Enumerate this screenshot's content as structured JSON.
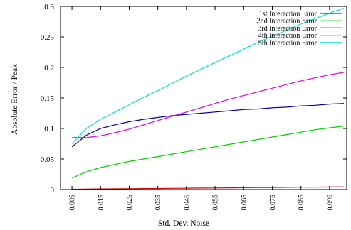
{
  "chart_data": {
    "type": "line",
    "xlabel": "Std. Dev. Noise",
    "ylabel": "Absolute Error / Peak",
    "xlim": [
      0.001,
      0.101
    ],
    "ylim": [
      0,
      0.3
    ],
    "x_ticks": [
      0.005,
      0.015,
      0.025,
      0.035,
      0.045,
      0.055,
      0.065,
      0.075,
      0.085,
      0.095
    ],
    "x_tick_labels": [
      "0.005",
      "0.015",
      "0.025",
      "0.035",
      "0.045",
      "0.055",
      "0.065",
      "0.075",
      "0.085",
      "0.095"
    ],
    "y_ticks": [
      0,
      0.05,
      0.1,
      0.15,
      0.2,
      0.25,
      0.3
    ],
    "y_tick_labels": [
      "0",
      "0.05",
      "0.1",
      "0.15",
      "0.2",
      "0.25",
      "0.3"
    ],
    "grid": false,
    "legend_position": "top-right",
    "x": [
      0.005,
      0.01,
      0.015,
      0.02,
      0.025,
      0.03,
      0.035,
      0.04,
      0.045,
      0.05,
      0.055,
      0.06,
      0.065,
      0.07,
      0.075,
      0.08,
      0.085,
      0.09,
      0.095,
      0.1
    ],
    "series": [
      {
        "name": "1st Interaction Error",
        "color": "#e00000",
        "values": [
          0.0005,
          0.0008,
          0.001,
          0.0012,
          0.0014,
          0.0016,
          0.0018,
          0.002,
          0.0022,
          0.0024,
          0.0026,
          0.0028,
          0.003,
          0.0032,
          0.0034,
          0.0036,
          0.0038,
          0.004,
          0.0042,
          0.0044
        ]
      },
      {
        "name": "2nd Interaction Error",
        "color": "#00d000",
        "values": [
          0.019,
          0.029,
          0.036,
          0.041,
          0.046,
          0.05,
          0.054,
          0.058,
          0.062,
          0.066,
          0.07,
          0.074,
          0.078,
          0.082,
          0.086,
          0.09,
          0.094,
          0.098,
          0.101,
          0.104
        ]
      },
      {
        "name": "3rd Interaction Error",
        "color": "#0000a0",
        "values": [
          0.07,
          0.089,
          0.1,
          0.106,
          0.111,
          0.115,
          0.118,
          0.121,
          0.123,
          0.125,
          0.127,
          0.129,
          0.131,
          0.132,
          0.134,
          0.135,
          0.137,
          0.138,
          0.14,
          0.141
        ]
      },
      {
        "name": "4th Interaction Error",
        "color": "#e000e0",
        "values": [
          0.085,
          0.085,
          0.088,
          0.093,
          0.099,
          0.106,
          0.113,
          0.12,
          0.127,
          0.134,
          0.141,
          0.148,
          0.154,
          0.16,
          0.166,
          0.172,
          0.178,
          0.183,
          0.188,
          0.192
        ]
      },
      {
        "name": "5th Interaction Error",
        "color": "#00e0e0",
        "values": [
          0.075,
          0.1,
          0.115,
          0.127,
          0.139,
          0.151,
          0.162,
          0.174,
          0.186,
          0.197,
          0.208,
          0.219,
          0.23,
          0.241,
          0.251,
          0.261,
          0.271,
          0.28,
          0.289,
          0.297
        ]
      }
    ]
  }
}
